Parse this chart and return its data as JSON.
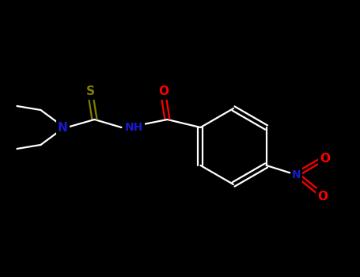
{
  "background_color": "#000000",
  "atom_colors": {
    "N": "#1a1acd",
    "O": "#ff0000",
    "S": "#808000",
    "C": "#ffffff"
  },
  "figsize": [
    4.55,
    3.5
  ],
  "dpi": 100,
  "bond_lw": 1.6
}
